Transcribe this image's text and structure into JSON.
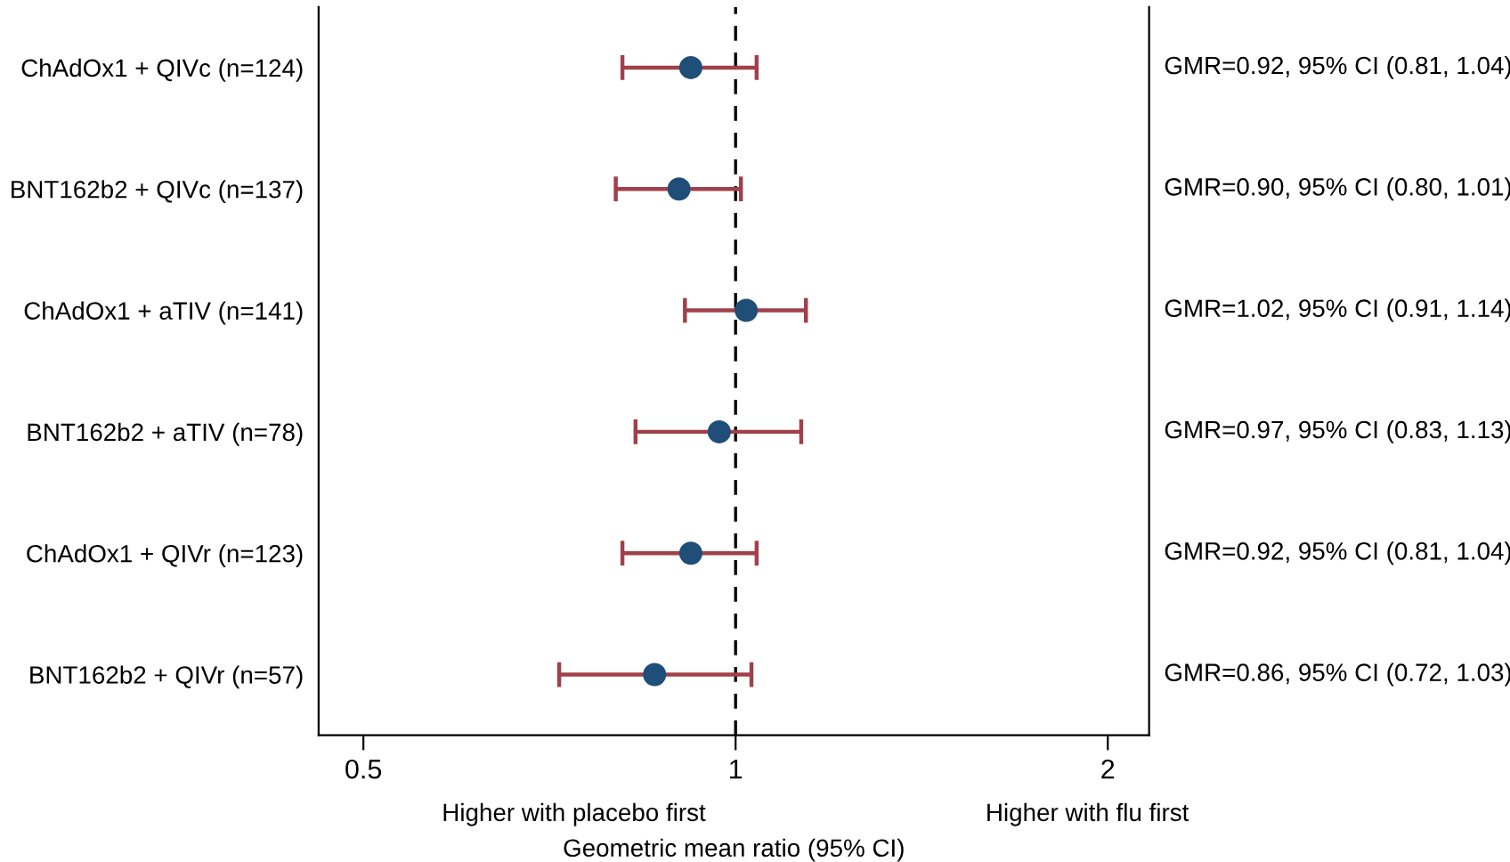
{
  "chart_data": {
    "type": "scatter",
    "orientation": "horizontal",
    "xlabel": "Geometric mean ratio (95% CI)",
    "categories": [
      "ChAdOx1 + QIVc (n=124)",
      "BNT162b2 + QIVc (n=137)",
      "ChAdOx1 + aTIV (n=141)",
      "BNT162b2 + aTIV (n=78)",
      "ChAdOx1 + QIVr (n=123)",
      "BNT162b2 + QIVr (n=57)"
    ],
    "series": [
      {
        "color": "#a0404a",
        "colors": [
          "#1f4e79",
          "#1f4e79",
          "#1f4e79",
          "#1f4e79",
          "#1f4e79",
          "#1f4e79"
        ],
        "values": [
          0.92,
          0.9,
          1.02,
          0.97,
          0.92,
          0.86
        ],
        "errors": [
          [
            0.81,
            1.04
          ],
          [
            0.8,
            1.01
          ],
          [
            0.91,
            1.14
          ],
          [
            0.83,
            1.13
          ],
          [
            0.81,
            1.04
          ],
          [
            0.72,
            1.03
          ]
        ],
        "value_labels": [
          "GMR=0.92, 95% CI (0.81, 1.04)",
          "GMR=0.90, 95% CI (0.80, 1.01)",
          "GMR=1.02, 95% CI (0.91, 1.14)",
          "GMR=0.97, 95% CI (0.83, 1.13)",
          "GMR=0.92, 95% CI (0.81, 1.04)",
          "GMR=0.86, 95% CI (0.72, 1.03)"
        ]
      }
    ],
    "log": "x",
    "xlim": [
      0.46,
      2.16
    ],
    "xticks": [
      0.5,
      1,
      2
    ],
    "ref_lines": [
      {
        "axis": "x",
        "value": 1,
        "color": "#000000",
        "line_style": "dashed"
      }
    ],
    "annotations": [
      "Higher with placebo first",
      "Higher with flu first"
    ],
    "marker": "circle",
    "grid": false,
    "legend": false
  }
}
